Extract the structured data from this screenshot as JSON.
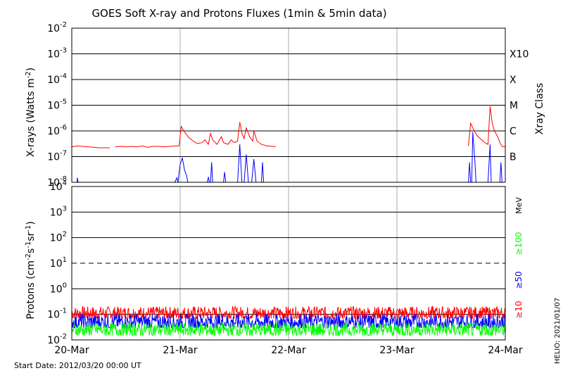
{
  "title": "GOES Soft X-ray and Protons Fluxes   (1min & 5min data)",
  "footer": {
    "start_date": "Start Date: 2012/03/20 00:00 UT",
    "credit": "HELIO: 2021/01/07"
  },
  "chart_data": [
    {
      "type": "line",
      "title": "GOES Soft X-ray and Protons Fluxes   (1min & 5min data)",
      "ylabel": "X-rays (Watts m^-2)",
      "yscale": "log",
      "ylim": [
        1e-08,
        0.01
      ],
      "y_tick_labels": [
        {
          "base": "10",
          "exp": "-2",
          "value": 0.01
        },
        {
          "base": "10",
          "exp": "-3",
          "value": 0.001
        },
        {
          "base": "10",
          "exp": "-4",
          "value": 0.0001
        },
        {
          "base": "10",
          "exp": "-5",
          "value": 1e-05
        },
        {
          "base": "10",
          "exp": "-6",
          "value": 1e-06
        },
        {
          "base": "10",
          "exp": "-7",
          "value": 1e-07
        },
        {
          "base": "10",
          "exp": "-8",
          "value": 1e-08
        }
      ],
      "right_axis_label": "Xray Class",
      "class_labels": [
        {
          "label": "X10",
          "value": 0.001
        },
        {
          "label": "X",
          "value": 0.0001
        },
        {
          "label": "M",
          "value": 1e-05
        },
        {
          "label": "C",
          "value": 1e-06
        },
        {
          "label": "B",
          "value": 1e-07
        }
      ],
      "grid": "horizontal at each decade, vertical at day boundaries",
      "series": [
        {
          "color": "#ff0000",
          "points": [
            [
              0.0,
              2.4e-07
            ],
            [
              0.05,
              2.6e-07
            ],
            [
              0.1,
              2.5e-07
            ],
            [
              0.15,
              2.4e-07
            ],
            [
              0.2,
              2.3e-07
            ],
            [
              0.25,
              2.2e-07
            ],
            [
              0.3,
              2.2e-07
            ],
            [
              0.35,
              2.2e-07
            ],
            [
              null,
              null
            ],
            [
              0.4,
              2.4e-07
            ],
            [
              0.45,
              2.5e-07
            ],
            [
              0.5,
              2.4e-07
            ],
            [
              0.55,
              2.5e-07
            ],
            [
              0.6,
              2.4e-07
            ],
            [
              0.65,
              2.6e-07
            ],
            [
              0.7,
              2.3e-07
            ],
            [
              0.75,
              2.5e-07
            ],
            [
              0.8,
              2.5e-07
            ],
            [
              0.85,
              2.4e-07
            ],
            [
              0.9,
              2.5e-07
            ],
            [
              0.95,
              2.6e-07
            ],
            [
              0.99,
              2.6e-07
            ],
            [
              1.01,
              1.5e-06
            ],
            [
              1.04,
              9e-07
            ],
            [
              1.08,
              5.5e-07
            ],
            [
              1.12,
              4e-07
            ],
            [
              1.16,
              3.2e-07
            ],
            [
              1.2,
              3.5e-07
            ],
            [
              1.23,
              4.5e-07
            ],
            [
              1.26,
              3e-07
            ],
            [
              1.28,
              8e-07
            ],
            [
              1.3,
              4.5e-07
            ],
            [
              1.34,
              3e-07
            ],
            [
              1.38,
              6e-07
            ],
            [
              1.4,
              3.5e-07
            ],
            [
              1.44,
              3e-07
            ],
            [
              1.47,
              4.5e-07
            ],
            [
              1.5,
              3.5e-07
            ],
            [
              1.53,
              4e-07
            ],
            [
              1.55,
              2.2e-06
            ],
            [
              1.57,
              8e-07
            ],
            [
              1.59,
              5e-07
            ],
            [
              1.61,
              1.3e-06
            ],
            [
              1.64,
              6e-07
            ],
            [
              1.67,
              4e-07
            ],
            [
              1.68,
              1e-06
            ],
            [
              1.71,
              4e-07
            ],
            [
              1.75,
              3e-07
            ],
            [
              1.8,
              2.6e-07
            ],
            [
              1.85,
              2.5e-07
            ],
            [
              1.88,
              2.4e-07
            ],
            [
              null,
              null
            ],
            [
              3.66,
              2.6e-07
            ],
            [
              3.68,
              2e-06
            ],
            [
              3.7,
              1.3e-06
            ],
            [
              3.72,
              9e-07
            ],
            [
              3.74,
              6.5e-07
            ],
            [
              3.77,
              5e-07
            ],
            [
              3.8,
              3.8e-07
            ],
            [
              3.82,
              3.3e-07
            ],
            [
              3.84,
              3e-07
            ],
            [
              3.86,
              9e-06
            ],
            [
              3.88,
              2e-06
            ],
            [
              3.9,
              1e-06
            ],
            [
              3.93,
              6e-07
            ],
            [
              3.95,
              3.5e-07
            ],
            [
              3.97,
              2.5e-07
            ],
            [
              4.0,
              2.4e-07
            ]
          ]
        },
        {
          "color": "#0000ff",
          "points": [
            [
              0.05,
              1e-08
            ],
            [
              0.05,
              1.5e-08
            ],
            [
              0.06,
              1e-08
            ],
            [
              null,
              null
            ],
            [
              0.95,
              1e-08
            ],
            [
              0.97,
              1.5e-08
            ],
            [
              0.98,
              1e-08
            ],
            [
              1.0,
              5e-08
            ],
            [
              1.02,
              9e-08
            ],
            [
              1.04,
              3e-08
            ],
            [
              1.06,
              1.8e-08
            ],
            [
              1.07,
              1e-08
            ],
            [
              null,
              null
            ],
            [
              1.25,
              1e-08
            ],
            [
              1.26,
              1.6e-08
            ],
            [
              1.27,
              1e-08
            ],
            [
              null,
              null
            ],
            [
              1.28,
              1e-08
            ],
            [
              1.29,
              6e-08
            ],
            [
              1.3,
              1e-08
            ],
            [
              null,
              null
            ],
            [
              1.4,
              1e-08
            ],
            [
              1.41,
              2.5e-08
            ],
            [
              1.42,
              1e-08
            ],
            [
              null,
              null
            ],
            [
              1.53,
              1e-08
            ],
            [
              1.55,
              3e-07
            ],
            [
              1.57,
              1e-08
            ],
            [
              null,
              null
            ],
            [
              1.59,
              1e-08
            ],
            [
              1.61,
              1.2e-07
            ],
            [
              1.63,
              1e-08
            ],
            [
              null,
              null
            ],
            [
              1.66,
              1e-08
            ],
            [
              1.68,
              8e-08
            ],
            [
              1.7,
              1e-08
            ],
            [
              null,
              null
            ],
            [
              1.75,
              1e-08
            ],
            [
              1.76,
              6e-08
            ],
            [
              1.77,
              1e-08
            ],
            [
              null,
              null
            ],
            [
              3.66,
              1e-08
            ],
            [
              3.67,
              6e-08
            ],
            [
              3.68,
              1e-08
            ],
            [
              null,
              null
            ],
            [
              3.69,
              1e-08
            ],
            [
              3.7,
              9e-07
            ],
            [
              3.72,
              6e-08
            ],
            [
              3.73,
              1e-08
            ],
            [
              null,
              null
            ],
            [
              3.84,
              1e-08
            ],
            [
              3.86,
              3e-07
            ],
            [
              3.87,
              1e-08
            ],
            [
              null,
              null
            ],
            [
              3.95,
              1e-08
            ],
            [
              3.96,
              6e-08
            ],
            [
              3.97,
              1e-08
            ]
          ]
        }
      ]
    },
    {
      "type": "line",
      "ylabel": "Protons (cm^-2 s^-1 sr^-1)",
      "yscale": "log",
      "ylim": [
        0.01,
        10000
      ],
      "y_tick_labels": [
        {
          "base": "10",
          "exp": "4",
          "value": 10000
        },
        {
          "base": "10",
          "exp": "3",
          "value": 1000
        },
        {
          "base": "10",
          "exp": "2",
          "value": 100
        },
        {
          "base": "10",
          "exp": "1",
          "value": 10
        },
        {
          "base": "10",
          "exp": "0",
          "value": 1
        },
        {
          "base": "10",
          "exp": "-1",
          "value": 0.1
        },
        {
          "base": "10",
          "exp": "-2",
          "value": 0.01
        }
      ],
      "threshold_line": {
        "value": 10,
        "style": "dashed"
      },
      "x_tick_labels": [
        "20-Mar",
        "21-Mar",
        "22-Mar",
        "23-Mar",
        "24-Mar"
      ],
      "xlim": [
        0,
        4
      ],
      "energy_unit": "MeV",
      "series": [
        {
          "name": "≥10",
          "color": "#ff0000",
          "y_range": [
            0.07,
            0.2
          ],
          "typical": 0.11
        },
        {
          "name": "≥50",
          "color": "#0000ff",
          "y_range": [
            0.03,
            0.1
          ],
          "typical": 0.05
        },
        {
          "name": "≥100",
          "color": "#00ff00",
          "y_range": [
            0.015,
            0.045
          ],
          "typical": 0.025
        }
      ]
    }
  ]
}
